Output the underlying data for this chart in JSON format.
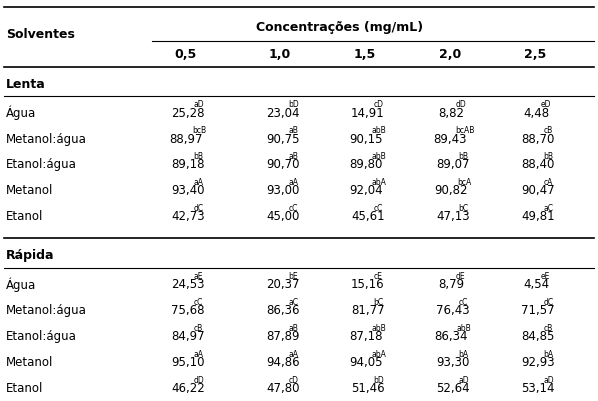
{
  "header_main": "Concentrações (mg/mL)",
  "col_header": "Solventes",
  "concentrations": [
    "0,5",
    "1,0",
    "1,5",
    "2,0",
    "2,5"
  ],
  "section_lenta": "Lenta",
  "section_rapida": "Rápida",
  "rows_lenta": [
    {
      "solvent": "Água",
      "values": [
        "25,28",
        "23,04",
        "14,91",
        "8,82",
        "4,48"
      ],
      "superscripts": [
        "aD",
        "bD",
        "cD",
        "dD",
        "eD"
      ]
    },
    {
      "solvent": "Metanol:água",
      "values": [
        "88,97",
        "90,75",
        "90,15",
        "89,43",
        "88,70"
      ],
      "superscripts": [
        "bcB",
        "aB",
        "abB",
        "bcAB",
        "cB"
      ]
    },
    {
      "solvent": "Etanol:água",
      "values": [
        "89,18",
        "90,70",
        "89,80",
        "89,07",
        "88,40"
      ],
      "superscripts": [
        "bB",
        "aB",
        "abB",
        "bB",
        "bB"
      ]
    },
    {
      "solvent": "Metanol",
      "values": [
        "93,40",
        "93,00",
        "92,04",
        "90,82",
        "90,47"
      ],
      "superscripts": [
        "aA",
        "aA",
        "abA",
        "bcA",
        "cA"
      ]
    },
    {
      "solvent": "Etanol",
      "values": [
        "42,73",
        "45,00",
        "45,61",
        "47,13",
        "49,81"
      ],
      "superscripts": [
        "dC",
        "cC",
        "cC",
        "bC",
        "aC"
      ]
    }
  ],
  "rows_rapida": [
    {
      "solvent": "Água",
      "values": [
        "24,53",
        "20,37",
        "15,16",
        "8,79",
        "4,54"
      ],
      "superscripts": [
        "aE",
        "bE",
        "cE",
        "dE",
        "eE"
      ]
    },
    {
      "solvent": "Metanol:água",
      "values": [
        "75,68",
        "86,36",
        "81,77",
        "76,43",
        "71,57"
      ],
      "superscripts": [
        "cC",
        "aC",
        "bC",
        "cC",
        "dC"
      ]
    },
    {
      "solvent": "Etanol:água",
      "values": [
        "84,97",
        "87,89",
        "87,18",
        "86,34",
        "84,85"
      ],
      "superscripts": [
        "cB",
        "aB",
        "abB",
        "abB",
        "cB"
      ]
    },
    {
      "solvent": "Metanol",
      "values": [
        "95,10",
        "94,86",
        "94,05",
        "93,30",
        "92,93"
      ],
      "superscripts": [
        "aA",
        "aA",
        "abA",
        "bA",
        "bA"
      ]
    },
    {
      "solvent": "Etanol",
      "values": [
        "46,22",
        "47,80",
        "51,46",
        "52,64",
        "53,14"
      ],
      "superscripts": [
        "dD",
        "cD",
        "bD",
        "aD",
        "aD"
      ]
    }
  ],
  "bg_color": "#ffffff",
  "font_size_main": 8.5,
  "font_size_super": 5.5,
  "font_size_header": 9.0,
  "font_size_section": 9.0
}
